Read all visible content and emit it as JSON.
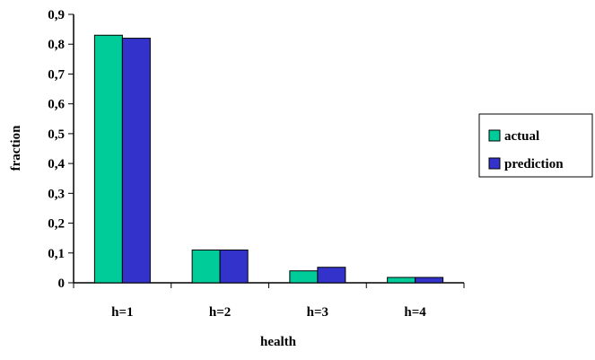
{
  "chart_data": {
    "type": "bar",
    "categories": [
      "h=1",
      "h=2",
      "h=3",
      "h=4"
    ],
    "series": [
      {
        "name": "actual",
        "values": [
          0.83,
          0.11,
          0.04,
          0.018
        ],
        "color": "#00CC99"
      },
      {
        "name": "prediction",
        "values": [
          0.82,
          0.11,
          0.052,
          0.018
        ],
        "color": "#3333CC"
      }
    ],
    "xlabel": "health",
    "ylabel": "fraction",
    "ylim": [
      0,
      0.9
    ],
    "yticks": [
      "0",
      "0,1",
      "0,2",
      "0,3",
      "0,4",
      "0,5",
      "0,6",
      "0,7",
      "0,8",
      "0,9"
    ],
    "grid": false,
    "legend_position": "right"
  }
}
